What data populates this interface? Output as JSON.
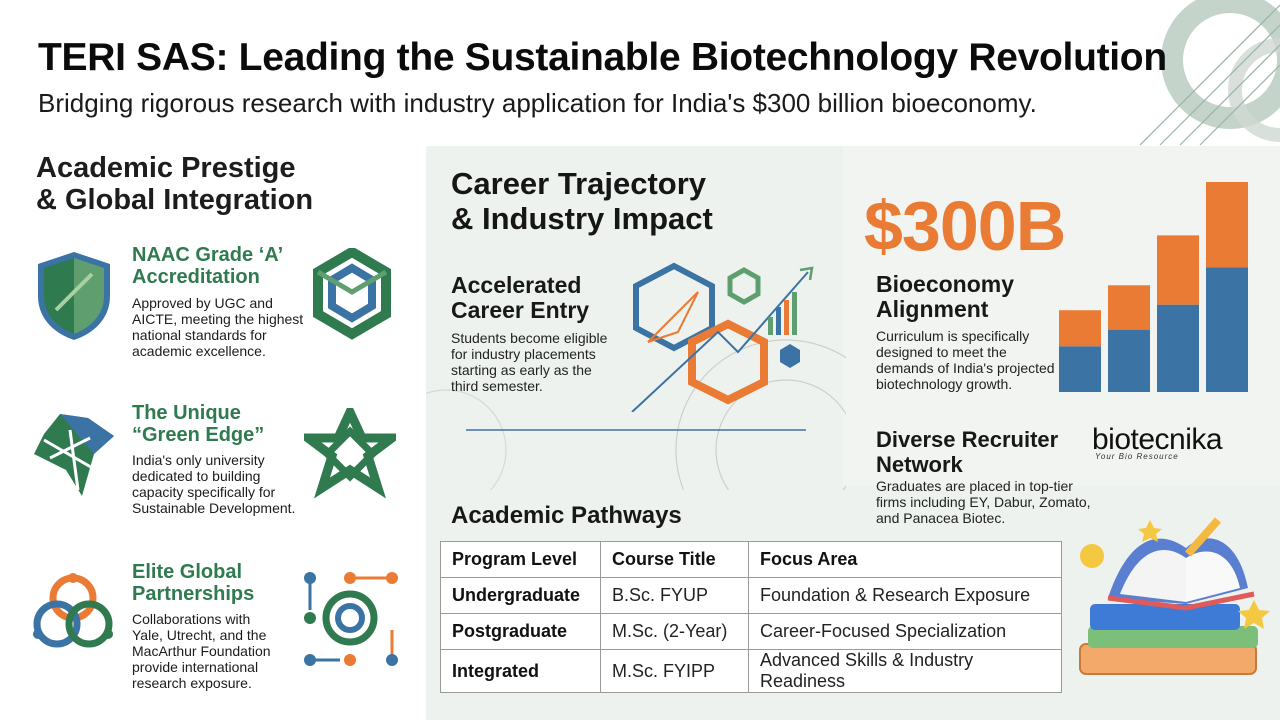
{
  "header": {
    "title": "TERI SAS: Leading the Sustainable Biotechnology Revolution",
    "subtitle": "Bridging rigorous research with industry application for India's $300 billion bioeconomy."
  },
  "left_section": {
    "heading_line1": "Academic Prestige",
    "heading_line2": "& Global Integration",
    "features": [
      {
        "title_line1": "NAAC Grade ‘A’",
        "title_line2": "Accreditation",
        "desc_lines": [
          "Approved by UGC and",
          "AICTE, meeting the highest",
          "national standards for",
          "academic excellence."
        ],
        "icon": "shield-icon",
        "badge_icon": "hexagon-knot-icon"
      },
      {
        "title_line1": "The Unique",
        "title_line2": "“Green Edge”",
        "desc_lines": [
          "India's only university",
          "dedicated to building",
          "capacity specifically for",
          "Sustainable Development."
        ],
        "icon": "india-leaf-map-icon",
        "badge_icon": "star-knot-icon"
      },
      {
        "title_line1": "Elite Global",
        "title_line2": "Partnerships",
        "desc_lines": [
          "Collaborations with",
          "Yale, Utrecht, and the",
          "MacArthur Foundation",
          "provide international",
          "research exposure."
        ],
        "icon": "interlinked-rings-icon",
        "badge_icon": "network-nodes-icon"
      }
    ]
  },
  "career": {
    "heading_line1": "Career Trajectory",
    "heading_line2": "& Industry Impact",
    "entry_title_line1": "Accelerated",
    "entry_title_line2": "Career Entry",
    "entry_desc_lines": [
      "Students become eligible",
      "for industry placements",
      "starting as early as the",
      "third semester."
    ]
  },
  "bioeconomy": {
    "big_number": "$300B",
    "title_line1": "Bioeconomy",
    "title_line2": "Alignment",
    "desc_lines": [
      "Curriculum is specifically",
      "designed to meet the",
      "demands of India's projected",
      "biotechnology growth."
    ],
    "bars": [
      {
        "blue": 0.22,
        "orange": 0.26
      },
      {
        "blue": 0.3,
        "orange": 0.32
      },
      {
        "blue": 0.42,
        "orange": 0.5
      },
      {
        "blue": 0.6,
        "orange": 0.62
      }
    ],
    "colors": {
      "blue": "#3b73a5",
      "orange": "#ea7b34"
    }
  },
  "recruiters": {
    "title_line1": "Diverse Recruiter",
    "title_line2": "Network",
    "desc_lines": [
      "Graduates are placed in top-tier",
      "firms including EY, Dabur, Zomato,",
      "and Panacea Biotec."
    ]
  },
  "logo": {
    "name": "biotecnika",
    "tagline": "Your Bio Resource"
  },
  "pathways": {
    "heading": "Academic Pathways",
    "columns": [
      "Program Level",
      "Course Title",
      "Focus Area"
    ],
    "rows": [
      [
        "Undergraduate",
        "B.Sc. FYUP",
        "Foundation & Research Exposure"
      ],
      [
        "Postgraduate",
        "M.Sc. (2-Year)",
        "Career-Focused Specialization"
      ],
      [
        "Integrated",
        "M.Sc. FYIPP",
        "Advanced Skills & Industry Readiness"
      ]
    ]
  },
  "colors": {
    "green": "#2f7a4f",
    "blue": "#3b73a5",
    "orange": "#ea7b34",
    "panel": "#eef2ee"
  }
}
